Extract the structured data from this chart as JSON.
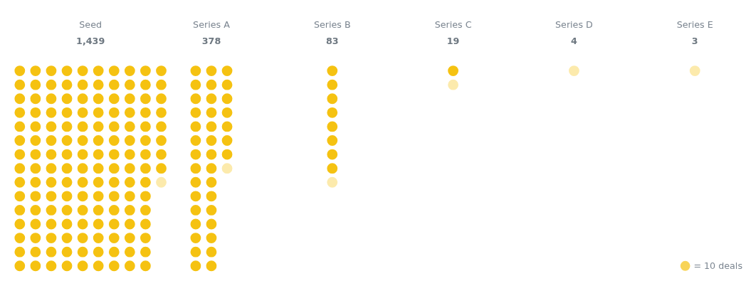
{
  "chart_data": {
    "type": "other",
    "categories": [
      "Seed",
      "Series A",
      "Series B",
      "Series C",
      "Series D",
      "Series E"
    ],
    "values": [
      1439,
      378,
      83,
      19,
      4,
      3
    ],
    "value_labels": [
      "1,439",
      "378",
      "83",
      "19",
      "4",
      "3"
    ],
    "color": "#f5c211",
    "annotations": [
      "= 10 deals"
    ]
  }
}
